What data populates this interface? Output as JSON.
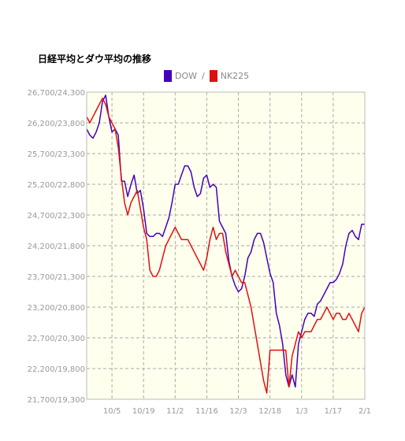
{
  "chart_data": {
    "type": "line",
    "title": "日経平均とダウ平均の推移",
    "legend": {
      "placement": "top",
      "separator": "/"
    },
    "y_labels": [
      "26,700/24,300",
      "26,200/23,800",
      "25,700/23,300",
      "25,200/22,800",
      "24,700/22,300",
      "24,200/21,800",
      "23,700/21,300",
      "23,200/20,800",
      "22,700/20,300",
      "22,200/19,800",
      "21,700/19,300"
    ],
    "ylim_nk": [
      21700,
      26700
    ],
    "ylim_dow": [
      19300,
      24300
    ],
    "x_ticks": [
      {
        "label": "10/5",
        "index": 8
      },
      {
        "label": "10/19",
        "index": 18
      },
      {
        "label": "11/2",
        "index": 28
      },
      {
        "label": "11/16",
        "index": 38
      },
      {
        "label": "12/3",
        "index": 48
      },
      {
        "label": "12/18",
        "index": 58
      },
      {
        "label": "1/3",
        "index": 68
      },
      {
        "label": "1/17",
        "index": 78
      },
      {
        "label": "2/1",
        "index": 88
      }
    ],
    "x_count": 89,
    "grid": true,
    "background": "#ffffee",
    "series": [
      {
        "name": "DOW",
        "axis": "dow",
        "color": "#4400bb",
        "values": [
          23700,
          23600,
          23550,
          23650,
          23800,
          24150,
          24250,
          23900,
          23650,
          23700,
          23600,
          22850,
          22850,
          22600,
          22800,
          22950,
          22650,
          22700,
          22400,
          22000,
          21950,
          21950,
          22000,
          22000,
          21950,
          22100,
          22250,
          22500,
          22800,
          22800,
          22950,
          23100,
          23100,
          23000,
          22750,
          22600,
          22650,
          22900,
          22950,
          22750,
          22800,
          22750,
          22200,
          22100,
          22000,
          21550,
          21300,
          21150,
          21050,
          21100,
          21300,
          21600,
          21700,
          21900,
          22000,
          22000,
          21850,
          21600,
          21350,
          21200,
          20700,
          20500,
          20200,
          19700,
          19500,
          19700,
          19500,
          20200,
          20400,
          20600,
          20700,
          20700,
          20650,
          20850,
          20900,
          21000,
          21100,
          21200,
          21200,
          21250,
          21350,
          21500,
          21800,
          22000,
          22050,
          21950,
          21900,
          22150,
          22150
        ]
      },
      {
        "name": "NK225",
        "axis": "nk",
        "color": "#e01010",
        "values": [
          26300,
          26200,
          26300,
          26400,
          26500,
          26600,
          26500,
          26300,
          26200,
          26100,
          25800,
          25300,
          24900,
          24700,
          24900,
          25000,
          25100,
          24800,
          24500,
          24300,
          23800,
          23700,
          23700,
          23800,
          24000,
          24200,
          24300,
          24400,
          24500,
          24400,
          24300,
          24300,
          24300,
          24200,
          24100,
          24000,
          23900,
          23800,
          24000,
          24300,
          24500,
          24300,
          24400,
          24400,
          24100,
          23900,
          23700,
          23800,
          23700,
          23600,
          23600,
          23400,
          23200,
          22900,
          22600,
          22300,
          22000,
          21800,
          22500,
          22500,
          22500,
          22500,
          22500,
          22500,
          21900,
          22400,
          22600,
          22800,
          22700,
          22800,
          22800,
          22800,
          22900,
          23000,
          23000,
          23100,
          23200,
          23100,
          23000,
          23100,
          23100,
          23000,
          23000,
          23100,
          23000,
          22900,
          22800,
          23100,
          23200
        ]
      }
    ]
  }
}
